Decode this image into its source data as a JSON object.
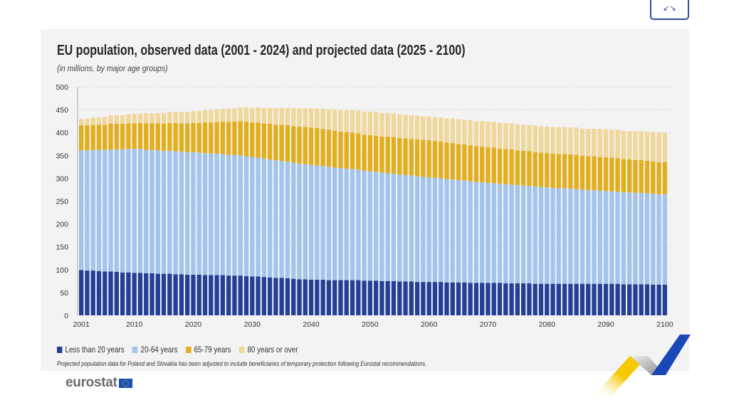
{
  "header": {
    "expand_icon": "expand-arrows-icon"
  },
  "chart_data": {
    "type": "stacked-bar",
    "title": "EU population, observed data (2001 - 2024) and projected data (2025 - 2100)",
    "subtitle": "(in millions, by major age groups)",
    "xlabel": "",
    "ylabel": "",
    "ylim": [
      0,
      500
    ],
    "yticks": [
      0,
      50,
      100,
      150,
      200,
      250,
      300,
      350,
      400,
      450,
      500
    ],
    "xticks": [
      2001,
      2010,
      2020,
      2030,
      2040,
      2050,
      2060,
      2070,
      2080,
      2090,
      2100
    ],
    "x_range": [
      2001,
      2100
    ],
    "grid": "horizontal dashed",
    "legend_position": "bottom",
    "series": [
      {
        "name": "Less than 20 years",
        "color": "#233f96",
        "values": [
          99,
          98,
          98,
          97,
          96,
          96,
          95,
          94,
          94,
          93,
          93,
          92,
          92,
          91,
          91,
          91,
          90,
          90,
          89,
          89,
          89,
          88,
          88,
          88,
          88,
          87,
          87,
          87,
          86,
          85,
          85,
          84,
          83,
          82,
          82,
          81,
          80,
          79,
          79,
          78,
          78,
          78,
          77,
          77,
          77,
          77,
          77,
          77,
          76,
          76,
          76,
          75,
          75,
          75,
          74,
          74,
          74,
          73,
          73,
          73,
          73,
          73,
          72,
          72,
          72,
          72,
          71,
          71,
          71,
          71,
          71,
          71,
          70,
          70,
          70,
          70,
          70,
          69,
          69,
          69,
          69,
          69,
          69,
          69,
          69,
          69,
          69,
          69,
          69,
          69,
          69,
          69,
          68,
          68,
          68,
          68,
          68,
          67,
          67,
          67
        ]
      },
      {
        "name": "20-64 years",
        "color": "#a3c4ee",
        "values": [
          262,
          263,
          264,
          265,
          266,
          267,
          268,
          269,
          270,
          271,
          271,
          270,
          270,
          270,
          269,
          269,
          269,
          268,
          268,
          268,
          267,
          267,
          266,
          266,
          265,
          264,
          264,
          263,
          262,
          261,
          260,
          259,
          258,
          257,
          256,
          255,
          254,
          253,
          252,
          251,
          250,
          249,
          248,
          246,
          245,
          244,
          243,
          242,
          240,
          239,
          238,
          237,
          236,
          235,
          234,
          233,
          232,
          231,
          230,
          229,
          228,
          227,
          226,
          225,
          224,
          223,
          222,
          221,
          220,
          219,
          218,
          217,
          217,
          216,
          215,
          214,
          213,
          213,
          212,
          211,
          210,
          209,
          209,
          208,
          207,
          206,
          205,
          205,
          204,
          203,
          202,
          202,
          201,
          201,
          200,
          200,
          199,
          199,
          198,
          198
        ]
      },
      {
        "name": "65-79 years",
        "color": "#e2ae1c",
        "values": [
          55,
          55,
          55,
          55,
          55,
          56,
          56,
          56,
          56,
          56,
          57,
          58,
          58,
          59,
          60,
          61,
          62,
          62,
          63,
          64,
          65,
          67,
          68,
          69,
          71,
          72,
          73,
          75,
          76,
          76,
          77,
          77,
          78,
          78,
          79,
          80,
          80,
          81,
          81,
          82,
          82,
          81,
          81,
          81,
          80,
          80,
          80,
          79,
          79,
          79,
          79,
          79,
          80,
          80,
          80,
          80,
          80,
          81,
          81,
          81,
          81,
          80,
          80,
          80,
          79,
          79,
          79,
          78,
          78,
          78,
          78,
          77,
          77,
          77,
          76,
          76,
          76,
          75,
          75,
          75,
          75,
          75,
          75,
          75,
          75,
          74,
          74,
          74,
          74,
          74,
          74,
          73,
          73,
          72,
          72,
          72,
          71,
          71,
          70,
          70
        ]
      },
      {
        "name": "80 years or over",
        "color": "#f0d79a",
        "values": [
          14,
          15,
          16,
          16,
          17,
          18,
          19,
          19,
          20,
          21,
          21,
          22,
          22,
          23,
          23,
          24,
          24,
          25,
          25,
          26,
          26,
          27,
          27,
          28,
          28,
          29,
          29,
          30,
          31,
          32,
          33,
          34,
          35,
          36,
          37,
          38,
          39,
          40,
          41,
          42,
          43,
          44,
          45,
          46,
          47,
          48,
          49,
          50,
          51,
          52,
          52,
          52,
          52,
          52,
          52,
          52,
          52,
          52,
          52,
          52,
          52,
          53,
          53,
          54,
          54,
          54,
          55,
          55,
          56,
          56,
          56,
          56,
          57,
          57,
          57,
          57,
          57,
          58,
          58,
          58,
          58,
          59,
          59,
          59,
          60,
          60,
          60,
          60,
          61,
          61,
          61,
          62,
          62,
          62,
          63,
          63,
          64,
          64,
          65,
          65
        ]
      }
    ],
    "note": "Projected population data for Poland and Slovakia has been adjusted to include beneficiaries of temporary protection following Eurostat recommendations."
  },
  "footer": {
    "logo_text": "eurostat"
  }
}
